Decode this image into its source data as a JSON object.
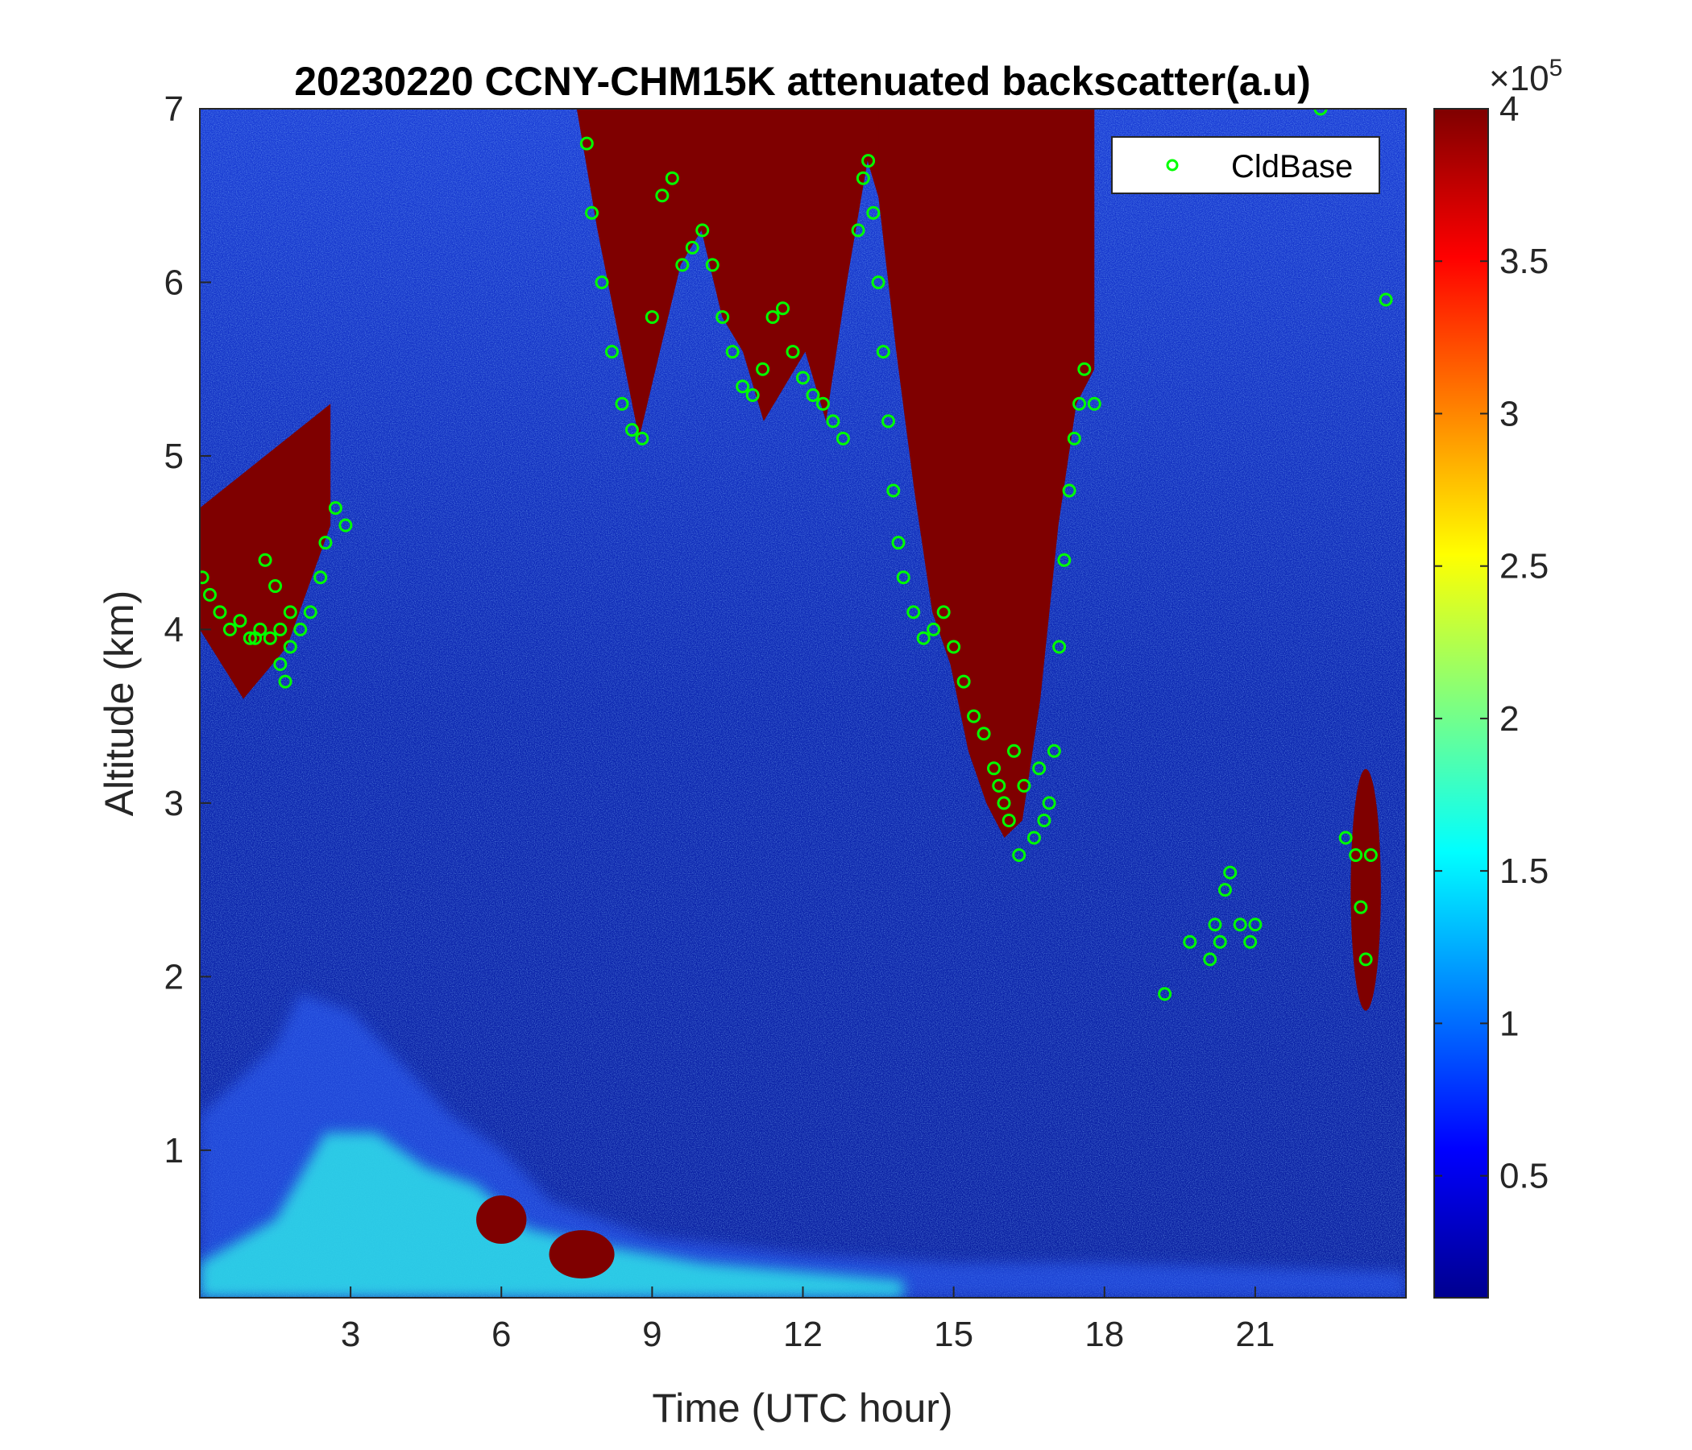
{
  "chart_data": {
    "type": "heatmap",
    "title": "20230220 CCNY-CHM15K attenuated backscatter(a.u)",
    "xlabel": "Time (UTC hour)",
    "ylabel": "Altitude (km)",
    "xlim": [
      0,
      24
    ],
    "ylim": [
      0.15,
      7
    ],
    "xticks": [
      3,
      6,
      9,
      12,
      15,
      18,
      21
    ],
    "yticks": [
      1,
      2,
      3,
      4,
      5,
      6,
      7
    ],
    "colorbar": {
      "colormap": "jet",
      "range": [
        0.1,
        4
      ],
      "ticks": [
        0.5,
        1,
        1.5,
        2,
        2.5,
        3,
        3.5,
        4
      ],
      "tick_labels": [
        "0.5",
        "1",
        "1.5",
        "2",
        "2.5",
        "3",
        "3.5",
        "4"
      ],
      "multiplier_base": "×10",
      "multiplier_exp": "5"
    },
    "legend": {
      "position": "top-right",
      "entries": [
        {
          "name": "CldBase",
          "marker": "circle",
          "color": "#00ff00"
        }
      ]
    },
    "features": [
      {
        "x": [
          0,
          2.6
        ],
        "bottom": [
          4.0,
          3.6,
          3.9,
          4.6
        ],
        "top": [
          4.7,
          5.3,
          5.2,
          4.6
        ],
        "value": 4
      },
      {
        "x": [
          7.5,
          13.7
        ],
        "bottom": [
          7.0,
          6.3,
          5.7,
          5.1,
          5.6,
          6.1,
          6.3,
          5.8,
          5.6,
          5.2,
          5.4,
          5.6,
          5.2,
          6.0,
          6.7,
          6.3
        ],
        "top": [
          7,
          7
        ],
        "value": 4
      },
      {
        "x": [
          13.5,
          17.8
        ],
        "bottom": [
          6.5,
          5.6,
          4.8,
          4.1,
          3.8,
          3.3,
          3.0,
          2.8,
          2.9,
          3.6,
          4.6,
          5.3,
          5.5
        ],
        "top": [
          7,
          7
        ],
        "value": 4
      },
      {
        "x": [
          22.9,
          23.5
        ],
        "center": [
          23.2,
          2.5
        ],
        "value": 4
      },
      {
        "x": [
          5.5,
          6.5
        ],
        "center": [
          6.0,
          0.6
        ],
        "value": 4
      },
      {
        "x": [
          7.0,
          8.3
        ],
        "center": [
          7.6,
          0.4
        ],
        "value": 4
      }
    ],
    "boundary_layer": {
      "aerosol_top": [
        [
          0,
          1.2
        ],
        [
          1.5,
          1.6
        ],
        [
          2,
          1.9
        ],
        [
          3,
          1.8
        ],
        [
          4,
          1.5
        ],
        [
          5,
          1.2
        ],
        [
          6,
          1.0
        ],
        [
          7,
          0.7
        ],
        [
          9,
          0.5
        ],
        [
          12,
          0.4
        ],
        [
          15,
          0.35
        ],
        [
          18,
          0.35
        ],
        [
          24,
          0.3
        ]
      ],
      "cyan_top": [
        [
          0,
          0.35
        ],
        [
          1.5,
          0.6
        ],
        [
          2.5,
          1.1
        ],
        [
          3.5,
          1.1
        ],
        [
          4.5,
          0.9
        ],
        [
          5.5,
          0.8
        ],
        [
          6.5,
          0.55
        ],
        [
          8,
          0.45
        ],
        [
          10,
          0.35
        ],
        [
          12,
          0.3
        ],
        [
          14,
          0.25
        ]
      ]
    },
    "cldbase_series": {
      "name": "CldBase",
      "points": [
        [
          0.05,
          4.3
        ],
        [
          0.2,
          4.2
        ],
        [
          0.4,
          4.1
        ],
        [
          0.6,
          4.0
        ],
        [
          0.8,
          4.05
        ],
        [
          1.0,
          3.95
        ],
        [
          1.2,
          4.0
        ],
        [
          1.4,
          3.95
        ],
        [
          1.6,
          4.0
        ],
        [
          1.8,
          3.9
        ],
        [
          1.1,
          3.95
        ],
        [
          1.3,
          4.4
        ],
        [
          1.5,
          4.25
        ],
        [
          1.6,
          3.8
        ],
        [
          1.7,
          3.7
        ],
        [
          1.8,
          4.1
        ],
        [
          2.0,
          4.0
        ],
        [
          2.2,
          4.1
        ],
        [
          2.4,
          4.3
        ],
        [
          2.5,
          4.5
        ],
        [
          2.7,
          4.7
        ],
        [
          2.9,
          4.6
        ],
        [
          7.7,
          6.8
        ],
        [
          7.8,
          6.4
        ],
        [
          8.0,
          6.0
        ],
        [
          8.2,
          5.6
        ],
        [
          8.4,
          5.3
        ],
        [
          8.6,
          5.15
        ],
        [
          8.8,
          5.1
        ],
        [
          9.0,
          5.8
        ],
        [
          9.2,
          6.5
        ],
        [
          9.4,
          6.6
        ],
        [
          9.6,
          6.1
        ],
        [
          9.8,
          6.2
        ],
        [
          10.0,
          6.3
        ],
        [
          10.2,
          6.1
        ],
        [
          10.4,
          5.8
        ],
        [
          10.6,
          5.6
        ],
        [
          10.8,
          5.4
        ],
        [
          11.0,
          5.35
        ],
        [
          11.2,
          5.5
        ],
        [
          11.4,
          5.8
        ],
        [
          11.6,
          5.85
        ],
        [
          11.8,
          5.6
        ],
        [
          12.0,
          5.45
        ],
        [
          12.2,
          5.35
        ],
        [
          12.4,
          5.3
        ],
        [
          12.6,
          5.2
        ],
        [
          12.8,
          5.1
        ],
        [
          13.1,
          6.3
        ],
        [
          13.2,
          6.6
        ],
        [
          13.3,
          6.7
        ],
        [
          13.4,
          6.4
        ],
        [
          13.5,
          6.0
        ],
        [
          13.6,
          5.6
        ],
        [
          13.7,
          5.2
        ],
        [
          13.8,
          4.8
        ],
        [
          13.9,
          4.5
        ],
        [
          14.0,
          4.3
        ],
        [
          14.2,
          4.1
        ],
        [
          14.4,
          3.95
        ],
        [
          14.6,
          4.0
        ],
        [
          14.8,
          4.1
        ],
        [
          15.0,
          3.9
        ],
        [
          15.2,
          3.7
        ],
        [
          15.4,
          3.5
        ],
        [
          15.6,
          3.4
        ],
        [
          15.8,
          3.2
        ],
        [
          16.0,
          3.0
        ],
        [
          16.1,
          2.9
        ],
        [
          16.2,
          3.3
        ],
        [
          16.4,
          3.1
        ],
        [
          16.6,
          2.8
        ],
        [
          16.8,
          2.9
        ],
        [
          17.0,
          3.3
        ],
        [
          17.1,
          3.9
        ],
        [
          17.2,
          4.4
        ],
        [
          17.3,
          4.8
        ],
        [
          17.4,
          5.1
        ],
        [
          17.5,
          5.3
        ],
        [
          17.6,
          5.5
        ],
        [
          17.8,
          5.3
        ],
        [
          16.3,
          2.7
        ],
        [
          16.9,
          3.0
        ],
        [
          15.9,
          3.1
        ],
        [
          16.7,
          3.2
        ],
        [
          19.2,
          1.9
        ],
        [
          19.7,
          2.2
        ],
        [
          20.1,
          2.1
        ],
        [
          20.2,
          2.3
        ],
        [
          20.3,
          2.2
        ],
        [
          20.4,
          2.5
        ],
        [
          20.5,
          2.6
        ],
        [
          20.7,
          2.3
        ],
        [
          20.9,
          2.2
        ],
        [
          21.0,
          2.3
        ],
        [
          22.3,
          7.0
        ],
        [
          22.8,
          2.8
        ],
        [
          23.0,
          2.7
        ],
        [
          23.1,
          2.4
        ],
        [
          23.2,
          2.1
        ],
        [
          23.3,
          2.7
        ],
        [
          23.6,
          5.9
        ]
      ]
    }
  }
}
